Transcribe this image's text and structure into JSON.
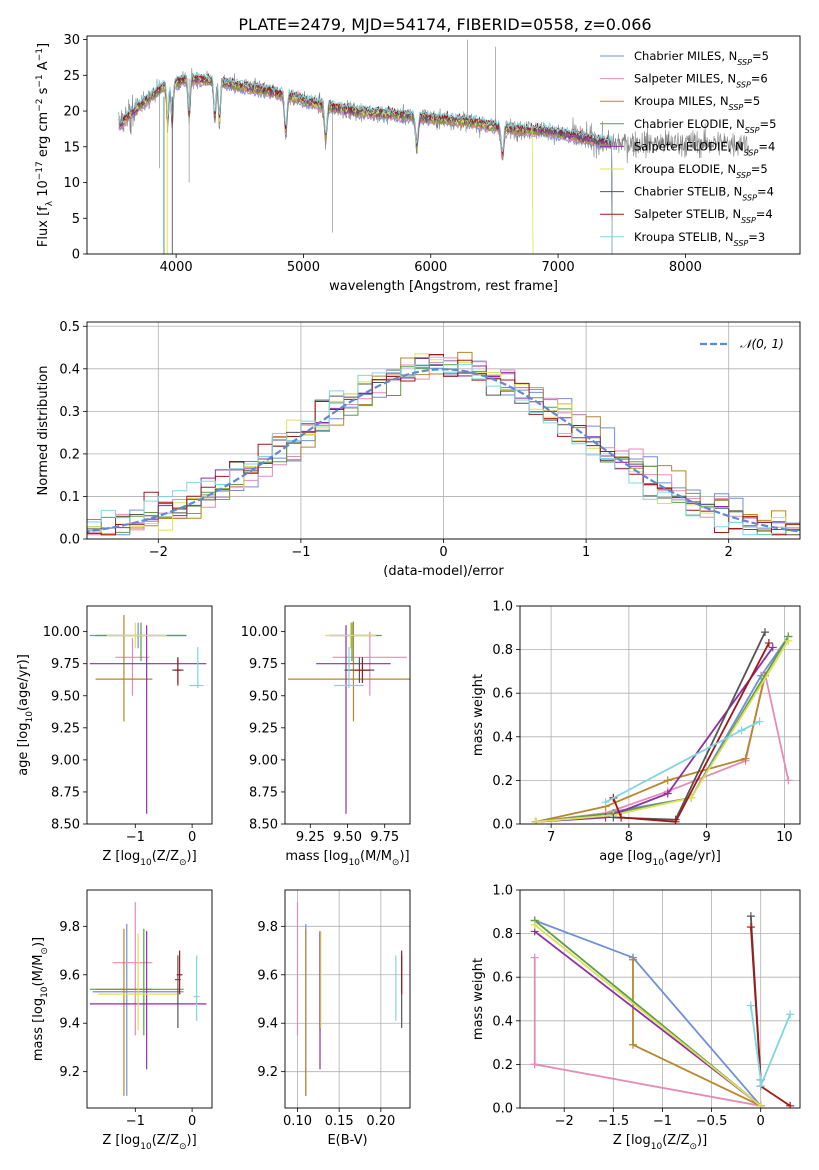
{
  "figure": {
    "title": "PLATE=2479, MJD=54174, FIBERID=0558, z=0.066"
  },
  "legend_entries": [
    {
      "name": "Chabrier MILES",
      "nssp": "5",
      "color": "#6f8fd8"
    },
    {
      "name": "Salpeter MILES",
      "nssp": "6",
      "color": "#e58bb8"
    },
    {
      "name": "Kroupa MILES",
      "nssp": "5",
      "color": "#b8862b"
    },
    {
      "name": "Chabrier ELODIE",
      "nssp": "5",
      "color": "#5d9e45"
    },
    {
      "name": "Salpeter ELODIE",
      "nssp": "4",
      "color": "#8e2fa9"
    },
    {
      "name": "Kroupa ELODIE",
      "nssp": "5",
      "color": "#dfe05a"
    },
    {
      "name": "Chabrier STELIB",
      "nssp": "4",
      "color": "#555555"
    },
    {
      "name": "Salpeter STELIB",
      "nssp": "4",
      "color": "#a01818"
    },
    {
      "name": "Kroupa STELIB",
      "nssp": "3",
      "color": "#7fd6df"
    }
  ],
  "chart_data": [
    {
      "id": "spectrum",
      "type": "line",
      "xlabel": "wavelength [Angstrom, rest frame]",
      "ylabel": "Flux [f_λ 10^-17 erg cm^-2 s^-1 A^-1]",
      "xlim": [
        3300,
        8900
      ],
      "ylim": [
        0,
        30.5
      ],
      "xticks": [
        4000,
        5000,
        6000,
        7000,
        8000
      ],
      "yticks": [
        0,
        5,
        10,
        15,
        20,
        25,
        30
      ],
      "series_note": "data spectrum (grey) with nine SSP model fits",
      "continuum_x": [
        3550,
        3700,
        3900,
        4100,
        4300,
        4500,
        4800,
        5100,
        5400,
        5700,
        6000,
        6300,
        6600,
        6900,
        7200,
        7400
      ],
      "continuum_y": [
        18,
        20.5,
        23.5,
        24.5,
        24.2,
        23.5,
        22.5,
        21,
        20,
        19.5,
        19,
        18.5,
        17.5,
        17.2,
        16.2,
        15.5
      ],
      "absorption_lines": [
        3934,
        3969,
        4102,
        4304,
        4340,
        4861,
        5175,
        5890,
        6563
      ],
      "grid": false
    },
    {
      "id": "residual_hist",
      "type": "bar",
      "xlabel": "(data-model)/error",
      "ylabel": "Normed distribution",
      "xlim": [
        -2.5,
        2.5
      ],
      "ylim": [
        0,
        0.51
      ],
      "xticks": [
        -2,
        -1,
        0,
        1,
        2
      ],
      "yticks": [
        0.0,
        0.1,
        0.2,
        0.3,
        0.4,
        0.5
      ],
      "reference_curve": "𝒩(0, 1)",
      "grid": true
    },
    {
      "id": "age_vs_Z",
      "type": "scatter",
      "xlabel": "Z [log10(Z/Z☉)]",
      "ylabel": "age [log10(age/yr)]",
      "xlim": [
        -1.85,
        0.35
      ],
      "ylim": [
        8.5,
        10.2
      ],
      "xticks": [
        -1,
        0
      ],
      "yticks": [
        8.5,
        8.75,
        9.0,
        9.25,
        9.5,
        9.75,
        10.0
      ],
      "points": [
        {
          "x": -0.95,
          "y": 9.97,
          "xerr": [
            0.85,
            0.85
          ],
          "yerr": [
            0.1,
            0.1
          ]
        },
        {
          "x": -1.05,
          "y": 9.8,
          "xerr": [
            0.3,
            0.3
          ],
          "yerr": [
            0.3,
            0.15
          ]
        },
        {
          "x": -1.2,
          "y": 9.63,
          "xerr": [
            0.5,
            0.5
          ],
          "yerr": [
            0.33,
            0.5
          ]
        },
        {
          "x": -0.9,
          "y": 9.97,
          "xerr": [
            0.8,
            0.8
          ],
          "yerr": [
            0.2,
            0.1
          ]
        },
        {
          "x": -0.8,
          "y": 9.75,
          "xerr": [
            1.0,
            1.05
          ],
          "yerr": [
            1.17,
            0.3
          ]
        },
        {
          "x": -1.0,
          "y": 9.97,
          "xerr": [
            0.5,
            0.55
          ],
          "yerr": [
            0.1,
            0.1
          ]
        },
        {
          "x": -0.25,
          "y": 9.7,
          "xerr": [
            0.1,
            0.1
          ],
          "yerr": [
            0.1,
            0.1
          ]
        },
        {
          "x": -0.25,
          "y": 9.7,
          "xerr": [
            0.06,
            0.06
          ],
          "yerr": [
            0.12,
            0.1
          ]
        },
        {
          "x": 0.1,
          "y": 9.58,
          "xerr": [
            0.15,
            0.1
          ],
          "yerr": [
            0.02,
            0.3
          ]
        }
      ]
    },
    {
      "id": "age_vs_mass",
      "type": "scatter",
      "xlabel": "mass [log10(M/M☉)]",
      "ylabel": "",
      "xlim": [
        9.08,
        9.92
      ],
      "ylim": [
        8.5,
        10.2
      ],
      "xticks": [
        9.25,
        9.5,
        9.75
      ],
      "yticks": [
        8.5,
        8.75,
        9.0,
        9.25,
        9.5,
        9.75,
        10.0
      ],
      "points": [
        {
          "x": 9.53,
          "y": 9.97,
          "xerr": [
            0.15,
            0.15
          ],
          "yerr": [
            0.1,
            0.1
          ]
        },
        {
          "x": 9.65,
          "y": 9.8,
          "xerr": [
            0.25,
            0.25
          ],
          "yerr": [
            0.3,
            0.2
          ]
        },
        {
          "x": 9.54,
          "y": 9.63,
          "xerr": [
            0.44,
            0.4
          ],
          "yerr": [
            0.33,
            0.45
          ]
        },
        {
          "x": 9.53,
          "y": 9.97,
          "xerr": [
            0.15,
            0.2
          ],
          "yerr": [
            0.2,
            0.1
          ]
        },
        {
          "x": 9.49,
          "y": 9.75,
          "xerr": [
            0.2,
            0.3
          ],
          "yerr": [
            1.17,
            0.3
          ]
        },
        {
          "x": 9.52,
          "y": 9.97,
          "xerr": [
            0.17,
            0.17
          ],
          "yerr": [
            0.1,
            0.1
          ]
        },
        {
          "x": 9.58,
          "y": 9.7,
          "xerr": [
            0.1,
            0.1
          ],
          "yerr": [
            0.1,
            0.1
          ]
        },
        {
          "x": 9.6,
          "y": 9.7,
          "xerr": [
            0.05,
            0.05
          ],
          "yerr": [
            0.1,
            0.1
          ]
        },
        {
          "x": 9.51,
          "y": 9.58,
          "xerr": [
            0.1,
            0.1
          ],
          "yerr": [
            0.02,
            0.3
          ]
        }
      ]
    },
    {
      "id": "massweight_vs_age",
      "type": "line",
      "xlabel": "age [log10(age/yr)]",
      "ylabel": "mass weight",
      "xlim": [
        6.6,
        10.2
      ],
      "ylim": [
        0,
        1.0
      ],
      "xticks": [
        7,
        8,
        9,
        10
      ],
      "yticks": [
        0.0,
        0.2,
        0.4,
        0.6,
        0.8,
        1.0
      ],
      "grid": true,
      "series": [
        {
          "x": [
            6.8,
            7.7,
            8.8,
            9.7,
            10.05
          ],
          "y": [
            0.01,
            0.05,
            0.12,
            0.68,
            0.86
          ]
        },
        {
          "x": [
            6.8,
            7.7,
            8.5,
            9.5,
            9.75,
            10.05
          ],
          "y": [
            0.01,
            0.05,
            0.15,
            0.29,
            0.69,
            0.2
          ]
        },
        {
          "x": [
            6.8,
            7.7,
            8.5,
            9.5,
            9.75
          ],
          "y": [
            0.01,
            0.08,
            0.2,
            0.3,
            0.68
          ]
        },
        {
          "x": [
            6.8,
            7.8,
            8.8,
            10.05
          ],
          "y": [
            0.01,
            0.05,
            0.12,
            0.86
          ]
        },
        {
          "x": [
            6.8,
            7.7,
            8.5,
            9.85
          ],
          "y": [
            0.01,
            0.03,
            0.14,
            0.81
          ]
        },
        {
          "x": [
            6.8,
            7.8,
            8.8,
            10.05
          ],
          "y": [
            0.01,
            0.04,
            0.12,
            0.84
          ]
        },
        {
          "x": [
            7.8,
            8.6,
            9.75
          ],
          "y": [
            0.03,
            0.02,
            0.88
          ]
        },
        {
          "x": [
            7.8,
            7.9,
            8.6,
            9.8
          ],
          "y": [
            0.12,
            0.03,
            0.01,
            0.83
          ]
        },
        {
          "x": [
            7.7,
            9.45,
            9.68
          ],
          "y": [
            0.1,
            0.43,
            0.47
          ]
        }
      ]
    },
    {
      "id": "mass_vs_Z",
      "type": "scatter",
      "xlabel": "Z [log10(Z/Z☉)]",
      "ylabel": "mass [log10(M/M☉)]",
      "xlim": [
        -1.85,
        0.35
      ],
      "ylim": [
        9.05,
        9.95
      ],
      "xticks": [
        -1,
        0
      ],
      "yticks": [
        9.2,
        9.4,
        9.6,
        9.8
      ],
      "points": [
        {
          "x": -1.15,
          "y": 9.53,
          "xerr": [
            0.6,
            1.0
          ],
          "yerr": [
            0.43,
            0.28
          ]
        },
        {
          "x": -1.0,
          "y": 9.65,
          "xerr": [
            0.4,
            0.3
          ],
          "yerr": [
            0.3,
            0.25
          ]
        },
        {
          "x": -1.2,
          "y": 9.54,
          "xerr": [
            0.5,
            0.5
          ],
          "yerr": [
            0.44,
            0.25
          ]
        },
        {
          "x": -0.85,
          "y": 9.54,
          "xerr": [
            0.95,
            0.7
          ],
          "yerr": [
            0.19,
            0.25
          ]
        },
        {
          "x": -0.8,
          "y": 9.48,
          "xerr": [
            1.0,
            1.05
          ],
          "yerr": [
            0.27,
            0.3
          ]
        },
        {
          "x": -0.95,
          "y": 9.52,
          "xerr": [
            0.7,
            0.75
          ],
          "yerr": [
            0.15,
            0.25
          ]
        },
        {
          "x": -0.25,
          "y": 9.58,
          "xerr": [
            0.05,
            0.05
          ],
          "yerr": [
            0.2,
            0.1
          ]
        },
        {
          "x": -0.22,
          "y": 9.6,
          "xerr": [
            0.05,
            0.05
          ],
          "yerr": [
            0.08,
            0.1
          ]
        },
        {
          "x": 0.08,
          "y": 9.51,
          "xerr": [
            0.05,
            0.05
          ],
          "yerr": [
            0.1,
            0.17
          ]
        }
      ]
    },
    {
      "id": "mass_vs_ebv",
      "type": "scatter",
      "xlabel": "E(B-V)",
      "ylabel": "",
      "xlim": [
        0.085,
        0.235
      ],
      "ylim": [
        9.05,
        9.95
      ],
      "xticks": [
        0.1,
        0.15,
        0.2
      ],
      "yticks": [
        9.2,
        9.4,
        9.6,
        9.8
      ],
      "grid": true,
      "points": [
        {
          "x": 0.11,
          "y": 9.53,
          "yerr": [
            0.43,
            0.28
          ]
        },
        {
          "x": 0.1,
          "y": 9.65,
          "yerr": [
            0.3,
            0.25
          ]
        },
        {
          "x": 0.11,
          "y": 9.54,
          "yerr": [
            0.44,
            0.25
          ]
        },
        {
          "x": 0.127,
          "y": 9.57,
          "yerr": [
            0.2,
            0.2
          ]
        },
        {
          "x": 0.127,
          "y": 9.48,
          "yerr": [
            0.27,
            0.3
          ]
        },
        {
          "x": 0.128,
          "y": 9.55,
          "yerr": [
            0.17,
            0.23
          ]
        },
        {
          "x": 0.225,
          "y": 9.58,
          "yerr": [
            0.2,
            0.1
          ]
        },
        {
          "x": 0.225,
          "y": 9.6,
          "yerr": [
            0.08,
            0.1
          ]
        },
        {
          "x": 0.218,
          "y": 9.51,
          "yerr": [
            0.1,
            0.17
          ]
        }
      ]
    },
    {
      "id": "massweight_vs_Z",
      "type": "line",
      "xlabel": "Z [log10(Z/Z☉)]",
      "ylabel": "mass weight",
      "xlim": [
        -2.45,
        0.4
      ],
      "ylim": [
        0,
        1.0
      ],
      "xticks": [
        -2.0,
        -1.5,
        -1.0,
        -0.5,
        0.0,
        0.5
      ],
      "yticks": [
        0.0,
        0.2,
        0.4,
        0.6,
        0.8,
        1.0
      ],
      "grid": true,
      "series": [
        {
          "x": [
            -2.3,
            -1.3,
            -1.3,
            0.0
          ],
          "y": [
            0.86,
            0.69,
            0.69,
            0.01
          ]
        },
        {
          "x": [
            -2.3,
            -2.3,
            -2.3,
            0.0
          ],
          "y": [
            0.69,
            0.2,
            0.2,
            0.01
          ]
        },
        {
          "x": [
            -1.3,
            -1.3,
            0.0
          ],
          "y": [
            0.68,
            0.29,
            0.01
          ]
        },
        {
          "x": [
            -2.3,
            0.0
          ],
          "y": [
            0.86,
            0.01
          ]
        },
        {
          "x": [
            -2.3,
            0.0
          ],
          "y": [
            0.81,
            0.01
          ]
        },
        {
          "x": [
            -2.3,
            0.0
          ],
          "y": [
            0.84,
            0.01
          ]
        },
        {
          "x": [
            -0.1,
            0.0
          ],
          "y": [
            0.88,
            0.13
          ]
        },
        {
          "x": [
            -0.1,
            0.0,
            0.0,
            0.3
          ],
          "y": [
            0.83,
            0.13,
            0.1,
            0.01
          ]
        },
        {
          "x": [
            -0.1,
            0.0,
            0.0,
            0.3
          ],
          "y": [
            0.47,
            0.13,
            0.1,
            0.43
          ]
        }
      ]
    }
  ]
}
